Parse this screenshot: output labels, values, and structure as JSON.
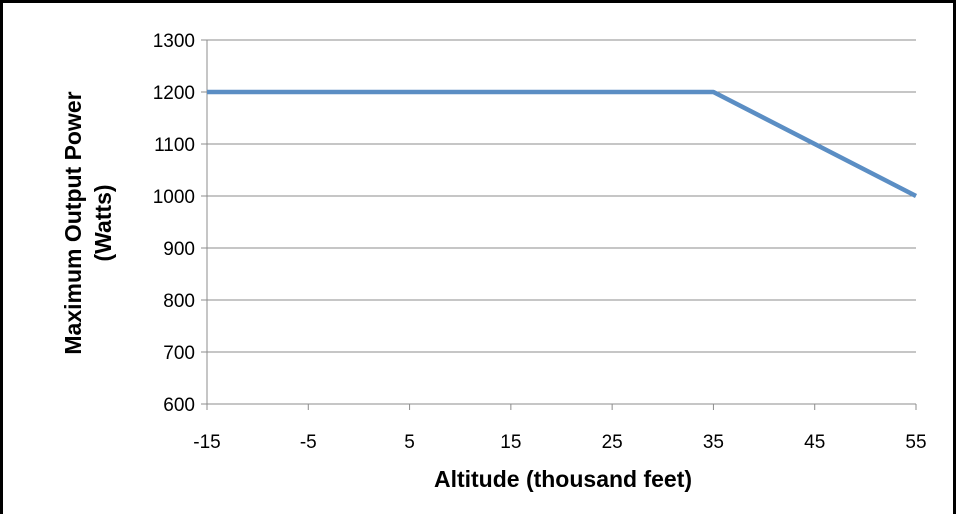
{
  "chart_data": {
    "type": "line",
    "xlabel": "Altitude (thousand feet)",
    "ylabel_lines": [
      "Maximum Output Power",
      "(Watts)"
    ],
    "x_ticks": [
      "-15",
      "-5",
      "5",
      "15",
      "25",
      "35",
      "45",
      "55"
    ],
    "y_ticks": [
      "600",
      "700",
      "800",
      "900",
      "1000",
      "1100",
      "1200",
      "1300"
    ],
    "xlim": [
      -15,
      55
    ],
    "ylim": [
      600,
      1300
    ],
    "grid": "horizontal",
    "legend": "none",
    "series": [
      {
        "color": "#5b8ec4",
        "points": [
          {
            "x": -15,
            "y": 1200
          },
          {
            "x": 35,
            "y": 1200
          },
          {
            "x": 55,
            "y": 1000
          }
        ]
      }
    ],
    "gridline_color": "#8c8c8c",
    "axis_color": "#8c8c8c"
  }
}
